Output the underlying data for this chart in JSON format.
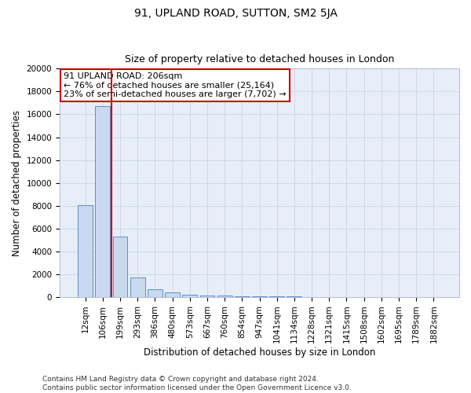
{
  "title": "91, UPLAND ROAD, SUTTON, SM2 5JA",
  "subtitle": "Size of property relative to detached houses in London",
  "xlabel": "Distribution of detached houses by size in London",
  "ylabel": "Number of detached properties",
  "categories": [
    "12sqm",
    "106sqm",
    "199sqm",
    "293sqm",
    "386sqm",
    "480sqm",
    "573sqm",
    "667sqm",
    "760sqm",
    "854sqm",
    "947sqm",
    "1041sqm",
    "1134sqm",
    "1228sqm",
    "1321sqm",
    "1415sqm",
    "1508sqm",
    "1602sqm",
    "1695sqm",
    "1789sqm",
    "1882sqm"
  ],
  "values": [
    8050,
    16700,
    5300,
    1750,
    700,
    380,
    200,
    140,
    110,
    80,
    60,
    45,
    35,
    25,
    20,
    15,
    12,
    10,
    8,
    6,
    5
  ],
  "bar_color": "#c9d9f0",
  "bar_edge_color": "#5b8fc9",
  "red_line_x": 1.5,
  "property_label": "91 UPLAND ROAD: 206sqm",
  "annotation_line1": "← 76% of detached houses are smaller (25,164)",
  "annotation_line2": "23% of semi-detached houses are larger (7,702) →",
  "annotation_box_color": "#ffffff",
  "annotation_box_edge": "#cc0000",
  "red_line_color": "#cc0000",
  "ylim": [
    0,
    20000
  ],
  "yticks": [
    0,
    2000,
    4000,
    6000,
    8000,
    10000,
    12000,
    14000,
    16000,
    18000,
    20000
  ],
  "footer_line1": "Contains HM Land Registry data © Crown copyright and database right 2024.",
  "footer_line2": "Contains public sector information licensed under the Open Government Licence v3.0.",
  "background_color": "#ffffff",
  "plot_bg_color": "#e8eef8",
  "title_fontsize": 10,
  "subtitle_fontsize": 9,
  "axis_label_fontsize": 8.5,
  "tick_fontsize": 7.5,
  "annotation_fontsize": 8,
  "footer_fontsize": 6.5
}
